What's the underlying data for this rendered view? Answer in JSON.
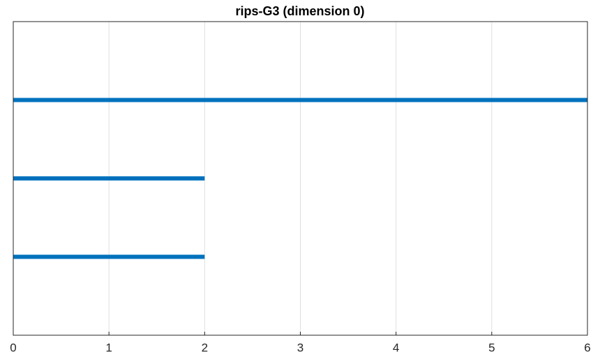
{
  "chart_data": {
    "type": "barcode",
    "title": "rips-G3 (dimension 0)",
    "starts": [
      0,
      0,
      0
    ],
    "ends": [
      6,
      2,
      2
    ],
    "color": "#0072bd",
    "xlim": [
      0,
      6
    ],
    "xticks": [
      0,
      1,
      2,
      3,
      4,
      5,
      6
    ],
    "grid": true
  }
}
